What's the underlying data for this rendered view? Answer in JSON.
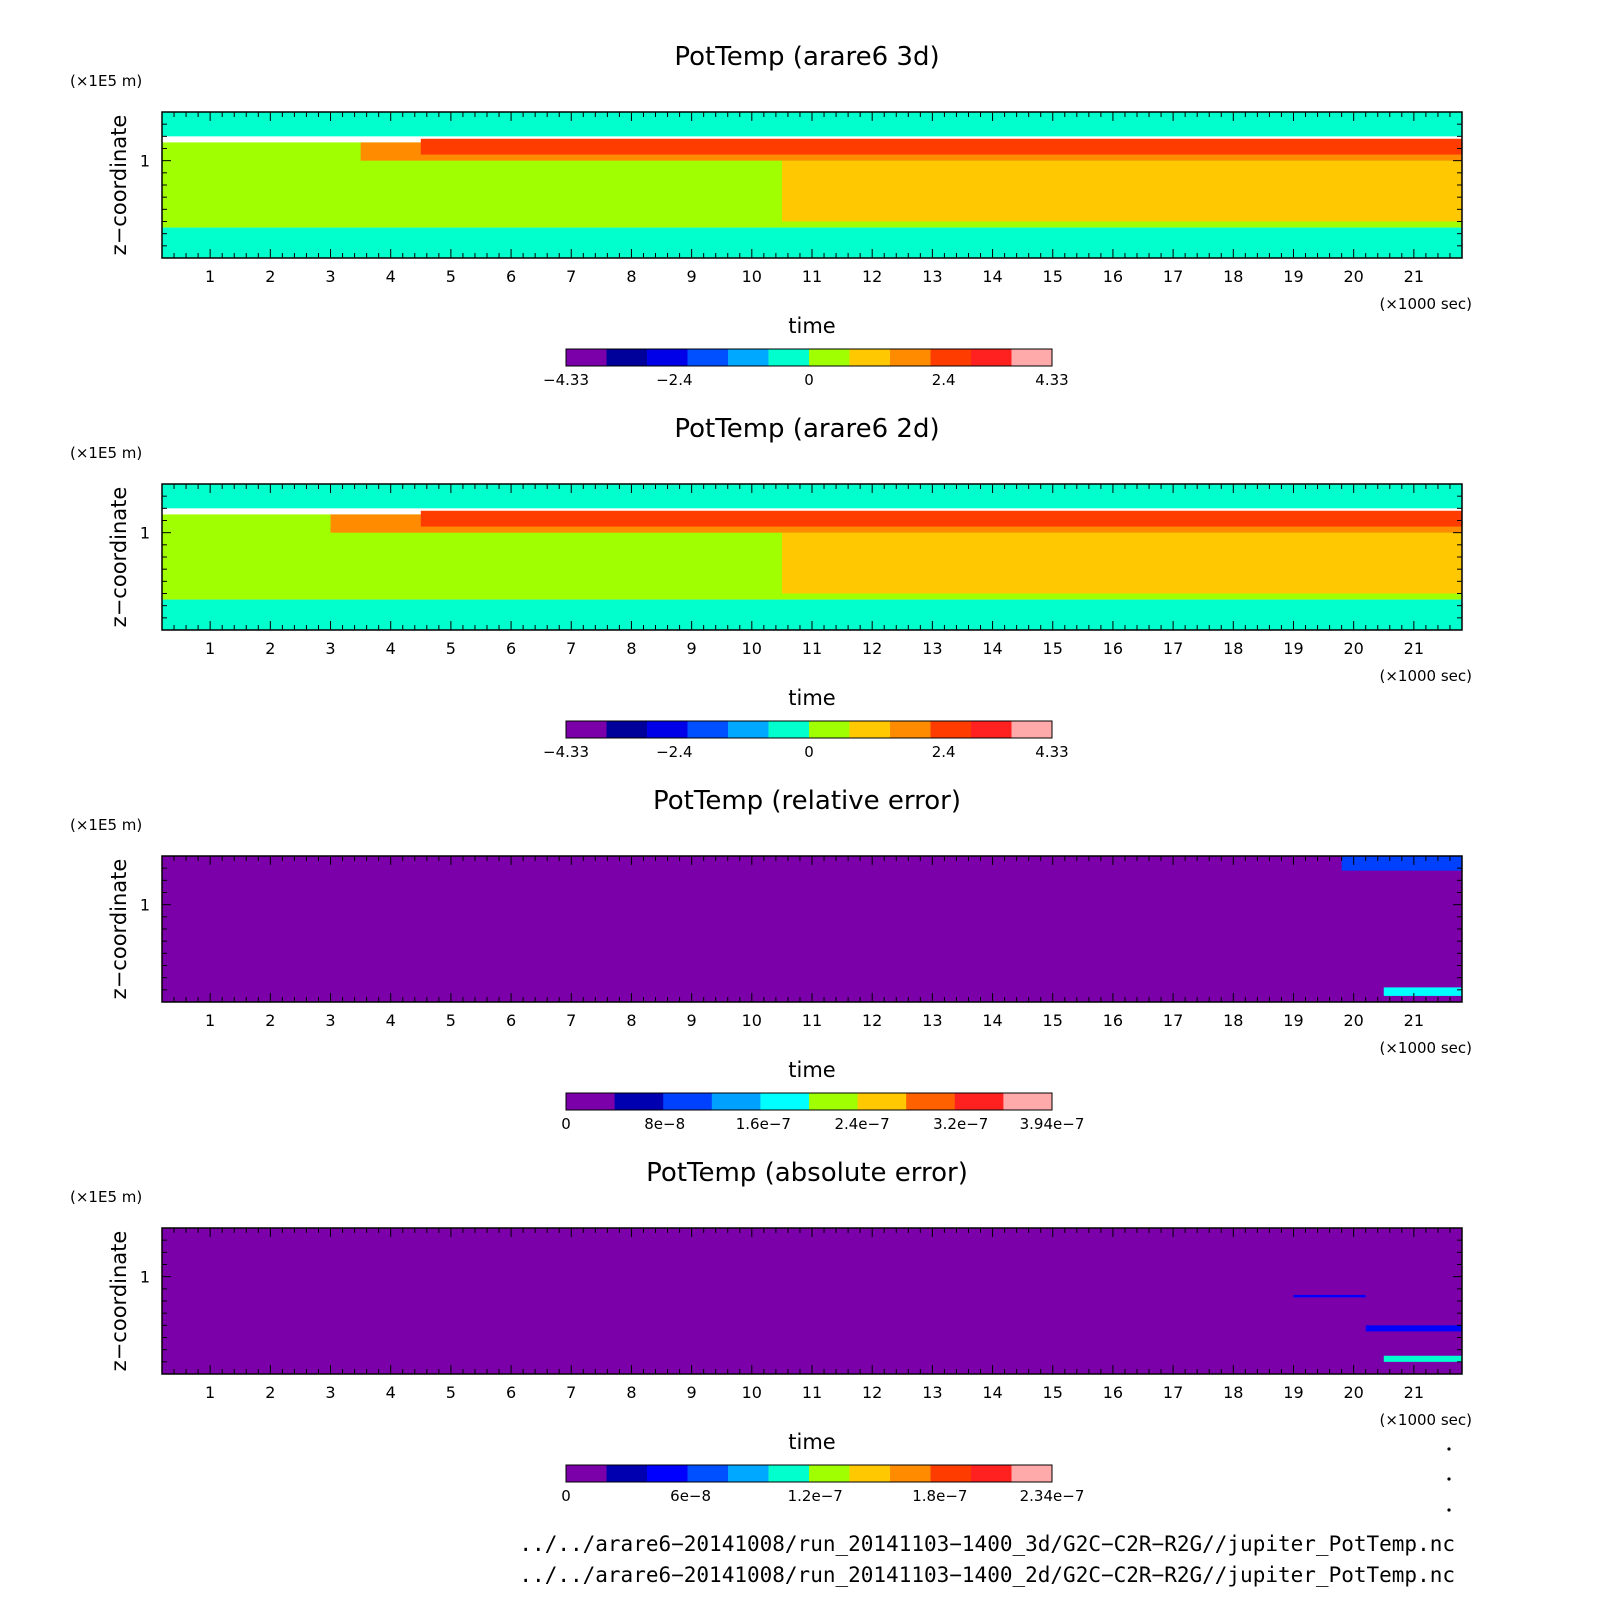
{
  "chart_data": [
    {
      "type": "heatmap",
      "title": "PotTemp (arare6 3d)",
      "xlabel": "time",
      "x_unit": "(×1000 sec)",
      "ylabel": "z−coordinate",
      "y_unit": "(×1E5 m)",
      "xlim": [
        0.2,
        21.8
      ],
      "ylim": [
        0.2,
        1.4
      ],
      "x_ticks": [
        "1",
        "2",
        "3",
        "4",
        "5",
        "6",
        "7",
        "8",
        "9",
        "10",
        "11",
        "12",
        "13",
        "14",
        "15",
        "16",
        "17",
        "18",
        "19",
        "20",
        "21"
      ],
      "y_ticks": [
        "1"
      ],
      "colorbar": {
        "min": -4.33,
        "max": 4.33,
        "tick_labels": [
          "−4.33",
          "−2.4",
          "0",
          "2.4",
          "4.33"
        ],
        "tick_values": [
          -4.33,
          -2.4,
          0,
          2.4,
          4.33
        ],
        "colors": [
          "#7b00aa",
          "#00009a",
          "#0000e8",
          "#0050ff",
          "#00a8ff",
          "#00ffcc",
          "#a0ff00",
          "#ffc800",
          "#ff8c00",
          "#ff3c00",
          "#ff2020",
          "#ffaaaa"
        ]
      },
      "regions": [
        {
          "level": "0 to 0.72",
          "color": "#a0ff00",
          "x": [
            0.2,
            21.8
          ],
          "y": [
            0.45,
            1.15
          ]
        },
        {
          "level": "-0.72 to 0",
          "color": "#00ffcc",
          "x": [
            0.2,
            21.8
          ],
          "y": [
            0.2,
            0.45
          ]
        },
        {
          "level": "-0.72 to 0",
          "color": "#00ffcc",
          "x": [
            0.2,
            21.8
          ],
          "y": [
            1.2,
            1.4
          ]
        },
        {
          "level": "0.72 to 1.44",
          "color": "#ffc800",
          "x": [
            10.5,
            21.8
          ],
          "y": [
            0.5,
            1.0
          ]
        },
        {
          "level": "1.44 to 2.16",
          "color": "#ff8c00",
          "x": [
            3.5,
            21.8
          ],
          "y": [
            1.0,
            1.15
          ]
        },
        {
          "level": "2.16 to 2.88",
          "color": "#ff3c00",
          "x": [
            4.5,
            21.8
          ],
          "y": [
            1.05,
            1.18
          ]
        }
      ]
    },
    {
      "type": "heatmap",
      "title": "PotTemp (arare6 2d)",
      "xlabel": "time",
      "x_unit": "(×1000 sec)",
      "ylabel": "z−coordinate",
      "y_unit": "(×1E5 m)",
      "xlim": [
        0.2,
        21.8
      ],
      "ylim": [
        0.2,
        1.4
      ],
      "x_ticks": [
        "1",
        "2",
        "3",
        "4",
        "5",
        "6",
        "7",
        "8",
        "9",
        "10",
        "11",
        "12",
        "13",
        "14",
        "15",
        "16",
        "17",
        "18",
        "19",
        "20",
        "21"
      ],
      "y_ticks": [
        "1"
      ],
      "colorbar": {
        "min": -4.33,
        "max": 4.33,
        "tick_labels": [
          "−4.33",
          "−2.4",
          "0",
          "2.4",
          "4.33"
        ],
        "tick_values": [
          -4.33,
          -2.4,
          0,
          2.4,
          4.33
        ],
        "colors": [
          "#7b00aa",
          "#00009a",
          "#0000e8",
          "#0050ff",
          "#00a8ff",
          "#00ffcc",
          "#a0ff00",
          "#ffc800",
          "#ff8c00",
          "#ff3c00",
          "#ff2020",
          "#ffaaaa"
        ]
      },
      "regions": [
        {
          "level": "0 to 0.72",
          "color": "#a0ff00",
          "x": [
            0.2,
            21.8
          ],
          "y": [
            0.45,
            1.15
          ]
        },
        {
          "level": "-0.72 to 0",
          "color": "#00ffcc",
          "x": [
            0.2,
            21.8
          ],
          "y": [
            0.2,
            0.45
          ]
        },
        {
          "level": "-0.72 to 0",
          "color": "#00ffcc",
          "x": [
            0.2,
            21.8
          ],
          "y": [
            1.2,
            1.4
          ]
        },
        {
          "level": "0.72 to 1.44",
          "color": "#ffc800",
          "x": [
            10.5,
            21.8
          ],
          "y": [
            0.5,
            1.0
          ]
        },
        {
          "level": "1.44 to 2.16",
          "color": "#ff8c00",
          "x": [
            3.0,
            21.8
          ],
          "y": [
            1.0,
            1.15
          ]
        },
        {
          "level": "2.16 to 2.88",
          "color": "#ff3c00",
          "x": [
            4.5,
            21.8
          ],
          "y": [
            1.05,
            1.18
          ]
        }
      ]
    },
    {
      "type": "heatmap",
      "title": "PotTemp (relative error)",
      "xlabel": "time",
      "x_unit": "(×1000 sec)",
      "ylabel": "z−coordinate",
      "y_unit": "(×1E5 m)",
      "xlim": [
        0.2,
        21.8
      ],
      "ylim": [
        0.2,
        1.4
      ],
      "x_ticks": [
        "1",
        "2",
        "3",
        "4",
        "5",
        "6",
        "7",
        "8",
        "9",
        "10",
        "11",
        "12",
        "13",
        "14",
        "15",
        "16",
        "17",
        "18",
        "19",
        "20",
        "21"
      ],
      "y_ticks": [
        "1"
      ],
      "colorbar": {
        "min": 0,
        "max": 3.94e-07,
        "tick_labels": [
          "0",
          "8e−8",
          "1.6e−7",
          "2.4e−7",
          "3.2e−7",
          "3.94e−7"
        ],
        "tick_values": [
          0,
          8e-08,
          1.6e-07,
          2.4e-07,
          3.2e-07,
          3.94e-07
        ],
        "colors": [
          "#7b00aa",
          "#0000b0",
          "#0040ff",
          "#00a0ff",
          "#00ffff",
          "#a0ff00",
          "#ffc800",
          "#ff6000",
          "#ff2020",
          "#ffaaaa"
        ]
      },
      "regions": [
        {
          "level": "0 to 4e-8",
          "color": "#7b00aa",
          "x": [
            0.2,
            21.8
          ],
          "y": [
            0.2,
            1.4
          ]
        },
        {
          "level": "4e-8 to 1.2e-7",
          "color": "#0040ff",
          "x": [
            19.8,
            21.8
          ],
          "y": [
            1.28,
            1.4
          ]
        },
        {
          "level": "1.2e-7 to 2e-7",
          "color": "#00ffff",
          "x": [
            20.5,
            21.8
          ],
          "y": [
            0.25,
            0.32
          ]
        }
      ]
    },
    {
      "type": "heatmap",
      "title": "PotTemp (absolute error)",
      "xlabel": "time",
      "x_unit": "(×1000 sec)",
      "ylabel": "z−coordinate",
      "y_unit": "(×1E5 m)",
      "xlim": [
        0.2,
        21.8
      ],
      "ylim": [
        0.2,
        1.4
      ],
      "x_ticks": [
        "1",
        "2",
        "3",
        "4",
        "5",
        "6",
        "7",
        "8",
        "9",
        "10",
        "11",
        "12",
        "13",
        "14",
        "15",
        "16",
        "17",
        "18",
        "19",
        "20",
        "21"
      ],
      "y_ticks": [
        "1"
      ],
      "colorbar": {
        "min": 0,
        "max": 2.34e-07,
        "tick_labels": [
          "0",
          "6e−8",
          "1.2e−7",
          "1.8e−7",
          "2.34e−7"
        ],
        "tick_values": [
          0,
          6e-08,
          1.2e-07,
          1.8e-07,
          2.34e-07
        ],
        "colors": [
          "#7b00aa",
          "#0000b0",
          "#0000ff",
          "#0050ff",
          "#00a8ff",
          "#00ffcc",
          "#a0ff00",
          "#ffc800",
          "#ff8c00",
          "#ff3c00",
          "#ff2020",
          "#ffaaaa"
        ]
      },
      "regions": [
        {
          "level": "0 to 2e-8",
          "color": "#7b00aa",
          "x": [
            0.2,
            21.8
          ],
          "y": [
            0.2,
            1.4
          ]
        },
        {
          "level": "2e-8 to 6e-8",
          "color": "#0000ff",
          "x": [
            19.0,
            20.2
          ],
          "y": [
            0.83,
            0.85
          ]
        },
        {
          "level": "2e-8 to 6e-8",
          "color": "#0000ff",
          "x": [
            20.2,
            21.8
          ],
          "y": [
            0.55,
            0.6
          ]
        },
        {
          "level": "1e-7 to 2e-7",
          "color": "#00ffcc",
          "x": [
            20.5,
            21.8
          ],
          "y": [
            0.3,
            0.35
          ]
        }
      ]
    }
  ],
  "footer": {
    "line1": "../../arare6−20141008/run_20141103−1400_3d/G2C−C2R−R2G//jupiter_PotTemp.nc",
    "line2": "../../arare6−20141008/run_20141103−1400_2d/G2C−C2R−R2G//jupiter_PotTemp.nc"
  }
}
